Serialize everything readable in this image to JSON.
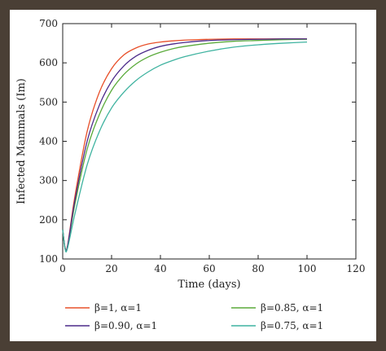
{
  "chart_data": {
    "type": "line",
    "xlabel": "Time (days)",
    "ylabel": "Infected Mammals (Im)",
    "xlim": [
      0,
      120
    ],
    "ylim": [
      100,
      700
    ],
    "xticks": [
      "0",
      "20",
      "40",
      "60",
      "80",
      "100",
      "120"
    ],
    "yticks": [
      "100",
      "200",
      "300",
      "400",
      "500",
      "600",
      "700"
    ],
    "grid": false,
    "legend_position": "bottom",
    "series": [
      {
        "name": "β=1, α=1",
        "color": "#e8502a",
        "x": [
          0,
          1,
          2,
          5,
          10,
          15,
          20,
          25,
          30,
          35,
          40,
          45,
          50,
          60,
          70,
          80,
          90,
          100
        ],
        "y": [
          175,
          128,
          135,
          260,
          425,
          525,
          585,
          620,
          638,
          648,
          653,
          656,
          658,
          660,
          661,
          661,
          661,
          661
        ]
      },
      {
        "name": "β=0.85, α=1",
        "color": "#5aaa3a",
        "x": [
          0,
          1,
          2,
          5,
          10,
          15,
          20,
          25,
          30,
          35,
          40,
          45,
          50,
          60,
          70,
          80,
          90,
          100
        ],
        "y": [
          175,
          126,
          132,
          240,
          380,
          468,
          530,
          570,
          597,
          615,
          627,
          636,
          642,
          650,
          655,
          657,
          659,
          660
        ]
      },
      {
        "name": "β=0.90, α=1",
        "color": "#4b2a8a",
        "x": [
          0,
          1,
          2,
          5,
          10,
          15,
          20,
          25,
          30,
          35,
          40,
          45,
          50,
          60,
          70,
          80,
          90,
          100
        ],
        "y": [
          175,
          127,
          133,
          250,
          400,
          492,
          553,
          592,
          617,
          632,
          642,
          648,
          652,
          657,
          659,
          660,
          661,
          661
        ]
      },
      {
        "name": "β=0.75, α=1",
        "color": "#3fb3a0",
        "x": [
          0,
          1,
          2,
          5,
          10,
          15,
          20,
          25,
          30,
          35,
          40,
          45,
          50,
          60,
          70,
          80,
          90,
          100
        ],
        "y": [
          175,
          125,
          128,
          215,
          340,
          425,
          485,
          525,
          555,
          577,
          594,
          606,
          616,
          630,
          640,
          646,
          650,
          653
        ]
      }
    ]
  }
}
